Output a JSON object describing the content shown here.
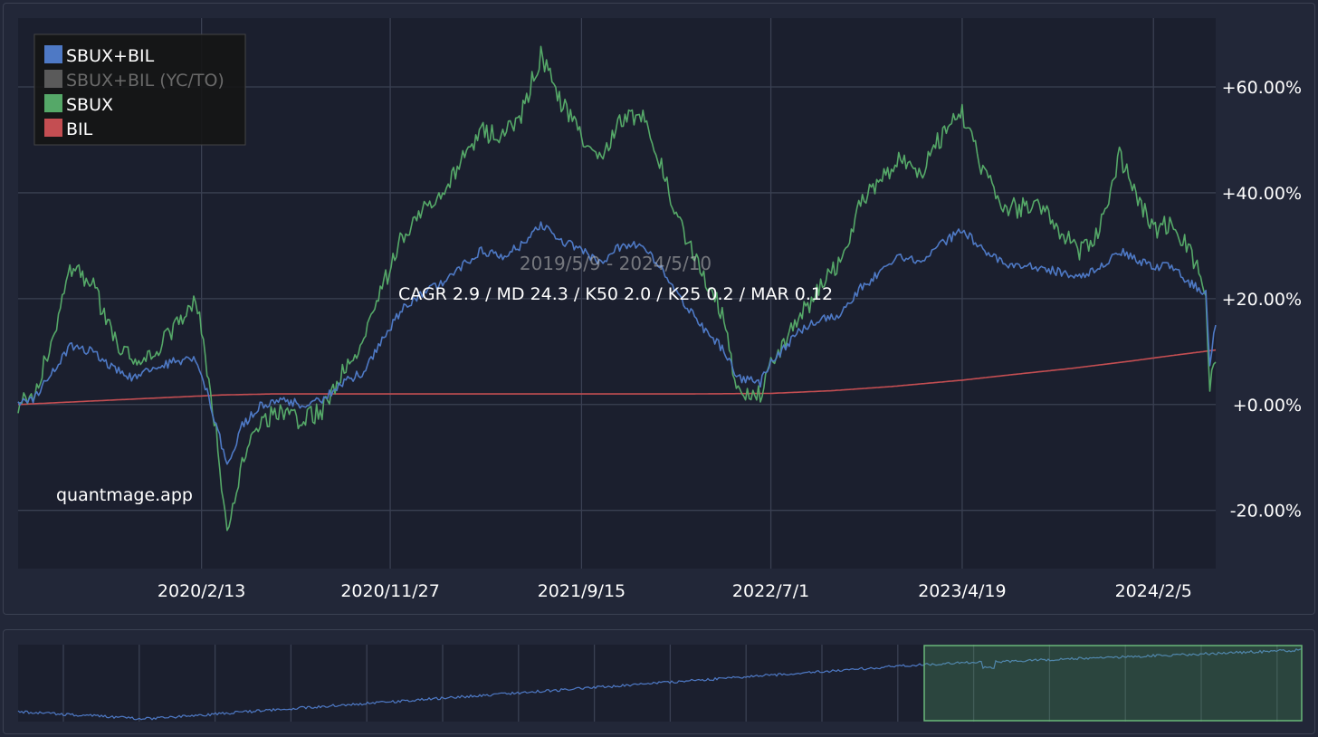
{
  "colors": {
    "background": "#1b1f2e",
    "panel": "#222738",
    "grid": "#3a4052",
    "sbux_bil": "#4e79c5",
    "sbux_bil_yc": "#5a5a5a",
    "sbux": "#55a868",
    "bil": "#c44e52",
    "text": "#ffffff"
  },
  "watermark": "quantmage.app",
  "overlay": {
    "date_range": "2019/5/9 - 2024/5/10",
    "stats": "CAGR 2.9 / MD 24.3 / K50 2.0 / K25 0.2 / MAR 0.12"
  },
  "chart_data": {
    "type": "line",
    "x_ticks": [
      "2020/2/13",
      "2020/11/27",
      "2021/9/15",
      "2022/7/1",
      "2023/4/19",
      "2024/2/5"
    ],
    "y_ticks": [
      "+60.00%",
      "+40.00%",
      "+20.00%",
      "+0.00%",
      "-20.00%"
    ],
    "ylim": [
      -31,
      73
    ],
    "xlim": [
      "2019/5/9",
      "2024/5/10"
    ],
    "legend_position": "top-left",
    "grid": true,
    "series": [
      {
        "name": "SBUX+BIL",
        "color": "#4e79c5",
        "points": [
          [
            "2019/5/9",
            0
          ],
          [
            "2019/6/1",
            1
          ],
          [
            "2019/7/1",
            6
          ],
          [
            "2019/7/27",
            11
          ],
          [
            "2019/9/1",
            10
          ],
          [
            "2019/10/1",
            7
          ],
          [
            "2019/11/1",
            5
          ],
          [
            "2019/12/1",
            7
          ],
          [
            "2020/1/1",
            8
          ],
          [
            "2020/2/1",
            9
          ],
          [
            "2020/2/13",
            6
          ],
          [
            "2020/3/9",
            -5
          ],
          [
            "2020/3/23",
            -12
          ],
          [
            "2020/4/15",
            -4
          ],
          [
            "2020/5/15",
            0
          ],
          [
            "2020/6/15",
            1
          ],
          [
            "2020/7/15",
            0
          ],
          [
            "2020/8/15",
            1
          ],
          [
            "2020/9/15",
            4
          ],
          [
            "2020/10/15",
            6
          ],
          [
            "2020/11/9",
            11
          ],
          [
            "2020/12/15",
            18
          ],
          [
            "2021/1/15",
            21
          ],
          [
            "2021/2/15",
            23
          ],
          [
            "2021/3/15",
            26
          ],
          [
            "2021/4/15",
            29
          ],
          [
            "2021/5/15",
            28
          ],
          [
            "2021/6/15",
            30
          ],
          [
            "2021/7/15",
            34
          ],
          [
            "2021/8/15",
            31
          ],
          [
            "2021/9/1",
            30
          ],
          [
            "2021/9/15",
            29
          ],
          [
            "2021/10/15",
            27
          ],
          [
            "2021/11/15",
            30
          ],
          [
            "2021/12/15",
            30
          ],
          [
            "2022/1/15",
            26
          ],
          [
            "2022/2/15",
            20
          ],
          [
            "2022/3/15",
            15
          ],
          [
            "2022/4/15",
            11
          ],
          [
            "2022/5/12",
            5
          ],
          [
            "2022/6/15",
            4
          ],
          [
            "2022/7/1",
            8
          ],
          [
            "2022/8/15",
            14
          ],
          [
            "2022/9/15",
            16
          ],
          [
            "2022/10/15",
            17
          ],
          [
            "2022/11/15",
            22
          ],
          [
            "2022/12/15",
            25
          ],
          [
            "2023/1/15",
            28
          ],
          [
            "2023/2/15",
            27
          ],
          [
            "2023/3/15",
            30
          ],
          [
            "2023/4/19",
            33
          ],
          [
            "2023/5/15",
            30
          ],
          [
            "2023/6/15",
            27
          ],
          [
            "2023/7/15",
            26
          ],
          [
            "2023/8/15",
            26
          ],
          [
            "2023/9/15",
            25
          ],
          [
            "2023/10/15",
            24
          ],
          [
            "2023/11/15",
            26
          ],
          [
            "2023/12/15",
            29
          ],
          [
            "2024/1/15",
            27
          ],
          [
            "2024/2/5",
            26
          ],
          [
            "2024/3/1",
            26
          ],
          [
            "2024/4/1",
            23
          ],
          [
            "2024/4/25",
            21
          ],
          [
            "2024/5/1",
            8
          ],
          [
            "2024/5/10",
            15
          ]
        ]
      },
      {
        "name": "SBUX+BIL (YC/TO)",
        "color": "#5a5a5a",
        "points": []
      },
      {
        "name": "SBUX",
        "color": "#55a868",
        "points": [
          [
            "2019/5/9",
            0
          ],
          [
            "2019/6/1",
            2
          ],
          [
            "2019/7/1",
            12
          ],
          [
            "2019/7/27",
            26
          ],
          [
            "2019/9/1",
            22
          ],
          [
            "2019/10/1",
            13
          ],
          [
            "2019/11/1",
            8
          ],
          [
            "2019/12/1",
            10
          ],
          [
            "2020/1/1",
            14
          ],
          [
            "2020/2/1",
            20
          ],
          [
            "2020/2/13",
            15
          ],
          [
            "2020/3/9",
            -8
          ],
          [
            "2020/3/23",
            -25
          ],
          [
            "2020/4/15",
            -10
          ],
          [
            "2020/5/15",
            -3
          ],
          [
            "2020/6/15",
            -1
          ],
          [
            "2020/7/15",
            -3
          ],
          [
            "2020/8/15",
            -1
          ],
          [
            "2020/9/15",
            6
          ],
          [
            "2020/10/15",
            11
          ],
          [
            "2020/11/9",
            20
          ],
          [
            "2020/12/15",
            32
          ],
          [
            "2021/1/15",
            37
          ],
          [
            "2021/2/15",
            40
          ],
          [
            "2021/3/15",
            46
          ],
          [
            "2021/4/15",
            52
          ],
          [
            "2021/5/15",
            50
          ],
          [
            "2021/6/15",
            55
          ],
          [
            "2021/7/15",
            66
          ],
          [
            "2021/8/15",
            57
          ],
          [
            "2021/9/1",
            54
          ],
          [
            "2021/9/15",
            50
          ],
          [
            "2021/10/15",
            47
          ],
          [
            "2021/11/15",
            54
          ],
          [
            "2021/12/15",
            55
          ],
          [
            "2022/1/15",
            45
          ],
          [
            "2022/2/15",
            33
          ],
          [
            "2022/3/15",
            26
          ],
          [
            "2022/4/15",
            18
          ],
          [
            "2022/5/12",
            3
          ],
          [
            "2022/6/15",
            2
          ],
          [
            "2022/7/1",
            8
          ],
          [
            "2022/8/15",
            17
          ],
          [
            "2022/9/15",
            22
          ],
          [
            "2022/10/15",
            27
          ],
          [
            "2022/11/15",
            38
          ],
          [
            "2022/12/15",
            43
          ],
          [
            "2023/1/15",
            46
          ],
          [
            "2023/2/15",
            44
          ],
          [
            "2023/3/15",
            50
          ],
          [
            "2023/4/19",
            55
          ],
          [
            "2023/5/15",
            46
          ],
          [
            "2023/6/15",
            38
          ],
          [
            "2023/7/15",
            37
          ],
          [
            "2023/8/15",
            38
          ],
          [
            "2023/9/15",
            33
          ],
          [
            "2023/10/15",
            29
          ],
          [
            "2023/11/15",
            33
          ],
          [
            "2023/12/15",
            47
          ],
          [
            "2024/1/15",
            38
          ],
          [
            "2024/2/5",
            33
          ],
          [
            "2024/3/1",
            34
          ],
          [
            "2024/4/1",
            29
          ],
          [
            "2024/4/25",
            22
          ],
          [
            "2024/5/1",
            3
          ],
          [
            "2024/5/10",
            8
          ]
        ]
      },
      {
        "name": "BIL",
        "color": "#c44e52",
        "points": [
          [
            "2019/5/9",
            0
          ],
          [
            "2019/12/1",
            1.2
          ],
          [
            "2020/3/15",
            1.8
          ],
          [
            "2020/6/1",
            2
          ],
          [
            "2021/6/1",
            2
          ],
          [
            "2022/3/1",
            2
          ],
          [
            "2022/7/1",
            2.1
          ],
          [
            "2022/10/1",
            2.6
          ],
          [
            "2023/1/1",
            3.4
          ],
          [
            "2023/4/19",
            4.6
          ],
          [
            "2023/7/1",
            5.6
          ],
          [
            "2023/10/1",
            6.8
          ],
          [
            "2024/1/1",
            8.2
          ],
          [
            "2024/3/1",
            9.2
          ],
          [
            "2024/5/10",
            10.3
          ]
        ]
      }
    ]
  },
  "navigator": {
    "series_name": "SBUX+BIL"
  }
}
